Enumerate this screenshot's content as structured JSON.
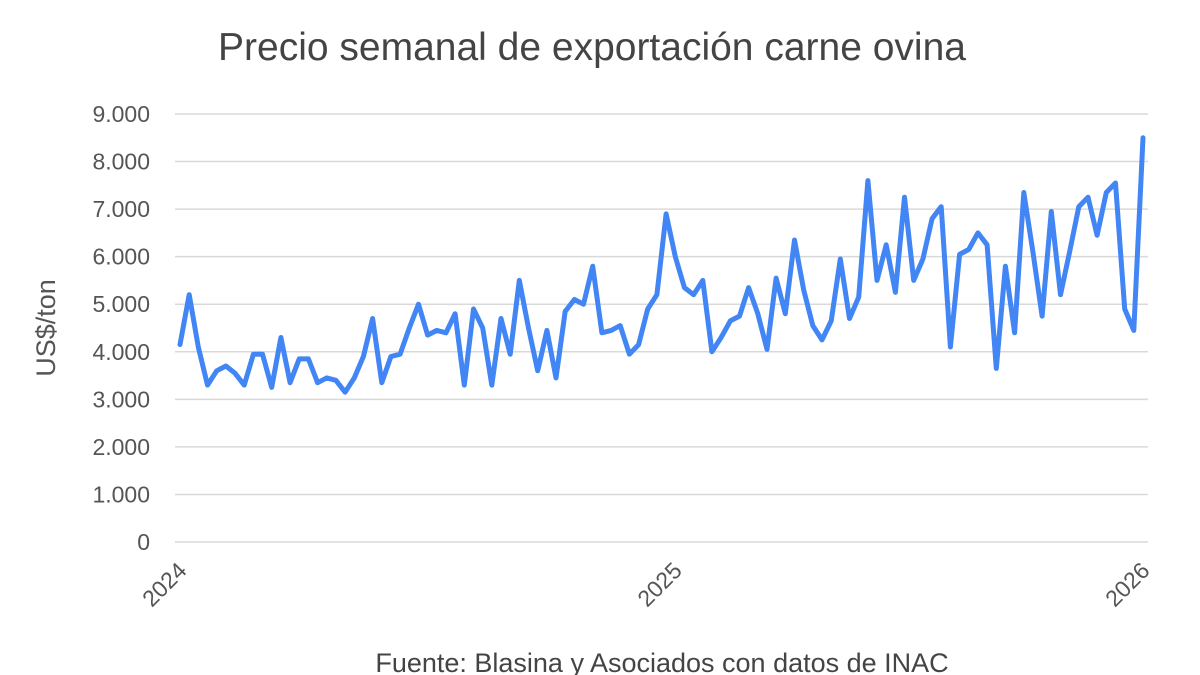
{
  "chart_data": {
    "type": "line",
    "title": "Precio semanal de exportación carne ovina",
    "y_label": "US$/ton",
    "source": "Fuente: Blasina y Asociados con datos de INAC",
    "color": "#4285f4",
    "grid": true,
    "ylim": [
      0,
      9000
    ],
    "yticks": [
      0,
      {
        "value": 1000,
        "label": "1.000"
      },
      {
        "value": 2000,
        "label": "2.000"
      },
      {
        "value": 3000,
        "label": "3.000"
      },
      {
        "value": 4000,
        "label": "4.000"
      },
      {
        "value": 5000,
        "label": "5.000"
      },
      {
        "value": 6000,
        "label": "6.000"
      },
      {
        "value": 7000,
        "label": "7.000"
      },
      {
        "value": 8000,
        "label": "8.000"
      },
      {
        "value": 9000,
        "label": "9.000"
      }
    ],
    "categories": [
      "2024",
      null,
      null,
      null,
      null,
      null,
      null,
      null,
      null,
      null,
      null,
      null,
      null,
      null,
      null,
      null,
      null,
      null,
      null,
      null,
      null,
      null,
      null,
      null,
      null,
      null,
      null,
      null,
      null,
      null,
      null,
      null,
      null,
      null,
      null,
      null,
      null,
      null,
      null,
      null,
      null,
      null,
      null,
      null,
      null,
      null,
      null,
      null,
      null,
      null,
      null,
      null,
      null,
      null,
      "2025",
      null,
      null,
      null,
      null,
      null,
      null,
      null,
      null,
      null,
      null,
      null,
      null,
      null,
      null,
      null,
      null,
      null,
      null,
      null,
      null,
      null,
      null,
      null,
      null,
      null,
      null,
      null,
      null,
      null,
      null,
      null,
      null,
      null,
      null,
      null,
      null,
      null,
      null,
      null,
      null,
      null,
      null,
      null,
      null,
      null,
      null,
      null,
      null,
      null,
      null,
      "2026"
    ],
    "values": [
      4150,
      5200,
      4100,
      3300,
      3600,
      3700,
      3550,
      3300,
      3950,
      3950,
      3250,
      4300,
      3350,
      3850,
      3850,
      3350,
      3450,
      3400,
      3150,
      3450,
      3900,
      4700,
      3350,
      3900,
      3950,
      4500,
      5000,
      4350,
      4450,
      4400,
      4800,
      3300,
      4900,
      4500,
      3300,
      4700,
      3950,
      5500,
      4500,
      3600,
      4450,
      3450,
      4850,
      5100,
      5000,
      5800,
      4400,
      4450,
      4550,
      3950,
      4150,
      4900,
      5200,
      6900,
      6000,
      5350,
      5200,
      5500,
      4000,
      4300,
      4650,
      4750,
      5350,
      4800,
      4050,
      5550,
      4800,
      6350,
      5300,
      4550,
      4250,
      4650,
      5950,
      4700,
      5150,
      7600,
      5500,
      6250,
      5250,
      7250,
      5500,
      5950,
      6800,
      7050,
      4100,
      6050,
      6150,
      6500,
      6250,
      3650,
      5800,
      4400,
      7350,
      6100,
      4750,
      6950,
      5200,
      6100,
      7050,
      7250,
      6450,
      7350,
      7550,
      4900,
      4450,
      8500
    ]
  }
}
